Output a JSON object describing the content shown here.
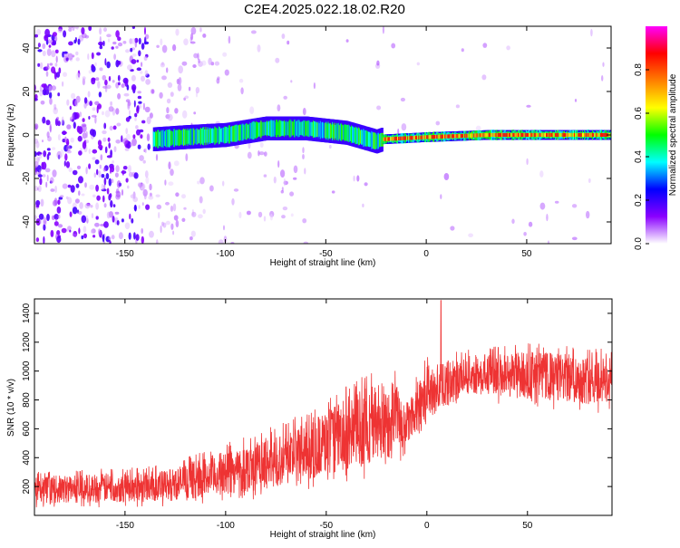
{
  "title": "C2E4.2025.022.18.02.R20",
  "chart_data": [
    {
      "type": "heatmap",
      "xlabel": "Height of straight line (km)",
      "ylabel": "Frequency (Hz)",
      "xlim": [
        -195,
        92
      ],
      "ylim": [
        -50,
        50
      ],
      "x_ticks": [
        -150,
        -100,
        -50,
        0,
        50
      ],
      "y_ticks": [
        -40,
        -20,
        0,
        20,
        40
      ],
      "colorbar": {
        "label": "Normalized spectral amplitude",
        "range": [
          0.0,
          1.0
        ],
        "ticks": [
          0.0,
          0.2,
          0.4,
          0.6,
          0.8
        ],
        "colors": [
          "#ffffff",
          "#8a00ff",
          "#0000ff",
          "#00ffff",
          "#00ff00",
          "#ffff00",
          "#ff7f00",
          "#ff0000",
          "#ff00ff"
        ]
      },
      "ridge": [
        {
          "x": -136,
          "f": -2
        },
        {
          "x": -120,
          "f": -1
        },
        {
          "x": -100,
          "f": 0
        },
        {
          "x": -80,
          "f": 3
        },
        {
          "x": -60,
          "f": 3
        },
        {
          "x": -40,
          "f": 1
        },
        {
          "x": -25,
          "f": -3
        },
        {
          "x": -22,
          "f": -2
        },
        {
          "x": 0,
          "f": -1
        },
        {
          "x": 30,
          "f": 0
        },
        {
          "x": 60,
          "f": 0
        },
        {
          "x": 92,
          "f": 0
        }
      ],
      "grid": false
    },
    {
      "type": "line",
      "xlabel": "Height of straight line (km)",
      "ylabel": "SNR (10 * v/v)",
      "xlim": [
        -195,
        92
      ],
      "ylim": [
        0,
        1500
      ],
      "x_ticks": [
        -150,
        -100,
        -50,
        0,
        50
      ],
      "y_ticks": [
        200,
        400,
        600,
        800,
        1000,
        1200,
        1400
      ],
      "series_color": "#ee3333",
      "envelope": [
        {
          "x": -195,
          "lo": 50,
          "hi": 300
        },
        {
          "x": -130,
          "lo": 60,
          "hi": 350
        },
        {
          "x": -110,
          "lo": 80,
          "hi": 450
        },
        {
          "x": -90,
          "lo": 100,
          "hi": 550
        },
        {
          "x": -70,
          "lo": 150,
          "hi": 650
        },
        {
          "x": -50,
          "lo": 200,
          "hi": 800
        },
        {
          "x": -30,
          "lo": 250,
          "hi": 1000
        },
        {
          "x": -15,
          "lo": 300,
          "hi": 1050
        },
        {
          "x": -12,
          "lo": 400,
          "hi": 800
        },
        {
          "x": 0,
          "lo": 600,
          "hi": 1100
        },
        {
          "x": 20,
          "lo": 800,
          "hi": 1150
        },
        {
          "x": 50,
          "lo": 750,
          "hi": 1200
        },
        {
          "x": 92,
          "lo": 700,
          "hi": 1150
        }
      ],
      "peak": {
        "x": 7,
        "y": 1490
      },
      "grid": false
    }
  ]
}
